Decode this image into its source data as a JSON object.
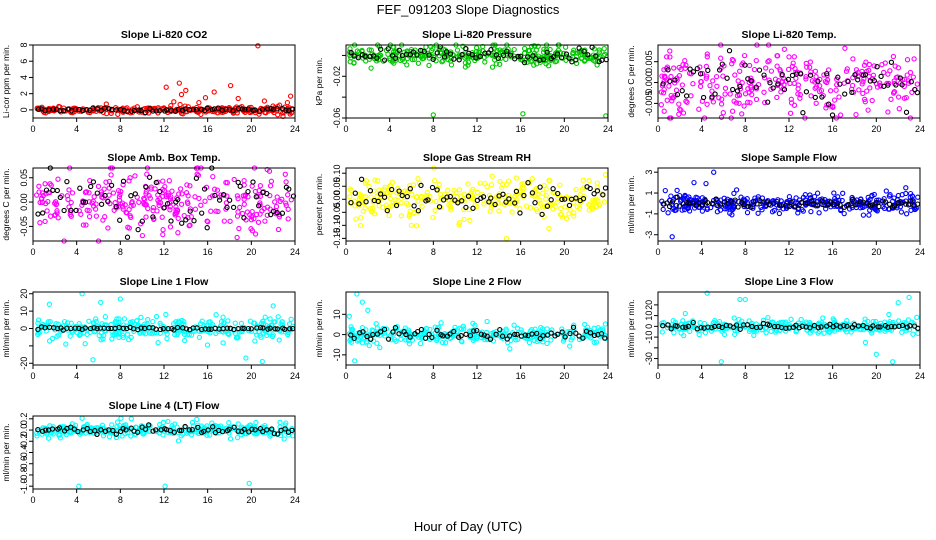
{
  "figure": {
    "title": "FEF_091203  Slope Diagnostics",
    "xlabel": "Hour of Day (UTC)"
  },
  "chart_data": [
    {
      "type": "scatter",
      "title": "Slope Li-820 CO2",
      "ylabel": "Li-cor ppm per min.",
      "xlabel": "",
      "xlim": [
        0,
        24
      ],
      "ylim": [
        -1,
        8
      ],
      "yticks": [
        0,
        2,
        4,
        6,
        8
      ],
      "xticks": [
        0,
        4,
        8,
        12,
        16,
        20,
        24
      ],
      "color": "#ff0000",
      "main": {
        "mean": 0,
        "sd": 0.22,
        "n": 260
      },
      "secondary": {
        "mean": 0,
        "sd": 0.12,
        "n": 70
      },
      "outliers": [
        [
          12.2,
          2.8
        ],
        [
          12.9,
          1.0
        ],
        [
          13.4,
          3.3
        ],
        [
          13.6,
          1.9
        ],
        [
          14.0,
          2.4
        ],
        [
          15.2,
          0.9
        ],
        [
          15.8,
          1.5
        ],
        [
          16.6,
          2.2
        ],
        [
          18.1,
          3.0
        ],
        [
          18.8,
          1.4
        ],
        [
          20.6,
          7.9
        ],
        [
          21.2,
          1.1
        ],
        [
          23.3,
          0.9
        ],
        [
          23.6,
          1.7
        ],
        [
          22.9,
          -0.8
        ]
      ]
    },
    {
      "type": "scatter",
      "title": "Slope Li-820 Pressure",
      "ylabel": "kPa per min.",
      "xlabel": "",
      "xlim": [
        0,
        24
      ],
      "ylim": [
        -0.06,
        0.01
      ],
      "yticks": [
        -0.06,
        -0.04,
        -0.02,
        0.0
      ],
      "ytick_labels": [
        "-0.06",
        "",
        "-0.02",
        ""
      ],
      "xticks": [
        0,
        4,
        8,
        12,
        16,
        20,
        24
      ],
      "color": "#00c800",
      "main": {
        "mean": 0,
        "sd": 0.005,
        "n": 300
      },
      "secondary": {
        "mean": 0,
        "sd": 0.003,
        "n": 70
      },
      "outliers": [
        [
          8.0,
          -0.057
        ],
        [
          16.2,
          -0.056
        ],
        [
          23.8,
          -0.058
        ],
        [
          17.3,
          0.009
        ]
      ]
    },
    {
      "type": "scatter",
      "title": "Slope Li-820 Temp.",
      "ylabel": "degrees C per min.",
      "xlabel": "",
      "xlim": [
        0,
        24
      ],
      "ylim": [
        -0.0085,
        0.009
      ],
      "yticks": [
        -0.005,
        0.0,
        0.005
      ],
      "ytick_labels": [
        "-0.005",
        "0.000",
        "0.005"
      ],
      "xticks": [
        0,
        4,
        8,
        12,
        16,
        20,
        24
      ],
      "color": "#ff00ff",
      "main": {
        "mean": 0,
        "sd": 0.004,
        "n": 300
      },
      "secondary": {
        "mean": 0,
        "sd": 0.003,
        "n": 70
      },
      "outliers": []
    },
    {
      "type": "scatter",
      "title": "Slope Amb. Box Temp.",
      "ylabel": "degrees C per min.",
      "xlabel": "",
      "xlim": [
        0,
        24
      ],
      "ylim": [
        -0.08,
        0.07
      ],
      "yticks": [
        -0.05,
        0.0,
        0.05
      ],
      "ytick_labels": [
        "-0.05",
        "0.00",
        "0.05"
      ],
      "xticks": [
        0,
        4,
        8,
        12,
        16,
        20,
        24
      ],
      "color": "#ff00ff",
      "main": {
        "mean": 0,
        "sd": 0.03,
        "n": 300
      },
      "secondary": {
        "mean": 0,
        "sd": 0.025,
        "n": 70
      },
      "outliers": []
    },
    {
      "type": "scatter",
      "title": "Slope Gas Stream RH",
      "ylabel": "percent per min.",
      "xlabel": "",
      "xlim": [
        0,
        24
      ],
      "ylim": [
        -0.16,
        0.12
      ],
      "yticks": [
        -0.15,
        -0.1,
        -0.05,
        0.0,
        0.05,
        0.1
      ],
      "ytick_labels": [
        "-0.15",
        "-0.10",
        "-0.05",
        "0.00",
        "0.05",
        "0.10"
      ],
      "xticks": [
        0,
        4,
        8,
        12,
        16,
        20,
        24
      ],
      "color": "#ffff00",
      "main": {
        "mean": 0,
        "sd": 0.04,
        "n": 300
      },
      "secondary": {
        "mean": 0,
        "sd": 0.03,
        "n": 70
      },
      "outliers": [
        [
          14.7,
          -0.15
        ]
      ]
    },
    {
      "type": "scatter",
      "title": "Slope Sample Flow",
      "ylabel": "ml/min per min.",
      "xlabel": "",
      "xlim": [
        0,
        24
      ],
      "ylim": [
        -3.6,
        3.4
      ],
      "yticks": [
        -3,
        -1,
        1,
        3
      ],
      "xticks": [
        0,
        4,
        8,
        12,
        16,
        20,
        24
      ],
      "color": "#0000ff",
      "main": {
        "mean": 0,
        "sd": 0.45,
        "n": 320
      },
      "secondary": {
        "mean": 0,
        "sd": 0.2,
        "n": 80
      },
      "outliers": [
        [
          3.3,
          2.0
        ],
        [
          4.4,
          1.9
        ],
        [
          5.1,
          3.0
        ],
        [
          1.3,
          -3.2
        ],
        [
          7.2,
          1.3
        ],
        [
          22.7,
          1.5
        ]
      ]
    },
    {
      "type": "scatter",
      "title": "Slope Line 1 Flow",
      "ylabel": "ml/min per min.",
      "xlabel": "",
      "xlim": [
        0,
        24
      ],
      "ylim": [
        -21,
        21
      ],
      "yticks": [
        -20,
        -10,
        0,
        10,
        20
      ],
      "ytick_labels": [
        "-20",
        "",
        "0",
        "10",
        "20"
      ],
      "xticks": [
        0,
        4,
        8,
        12,
        16,
        20,
        24
      ],
      "color": "#00ffff",
      "main": {
        "mean": 0,
        "sd": 3.0,
        "n": 300
      },
      "secondary": {
        "mean": 0,
        "sd": 0.4,
        "n": 70
      },
      "outliers": [
        [
          4.5,
          20
        ],
        [
          1.5,
          14
        ],
        [
          5.5,
          -18
        ],
        [
          6.2,
          15
        ],
        [
          8.0,
          17
        ],
        [
          19.5,
          -17
        ],
        [
          21.0,
          -19
        ],
        [
          22.0,
          13
        ],
        [
          3.0,
          -9
        ]
      ]
    },
    {
      "type": "scatter",
      "title": "Slope Line 2 Flow",
      "ylabel": "ml/min per min.",
      "xlabel": "",
      "xlim": [
        0,
        24
      ],
      "ylim": [
        -15,
        21
      ],
      "yticks": [
        -10,
        0,
        10
      ],
      "xticks": [
        0,
        4,
        8,
        12,
        16,
        20,
        24
      ],
      "color": "#00ffff",
      "main": {
        "mean": 0,
        "sd": 2.2,
        "n": 300
      },
      "secondary": {
        "mean": 0,
        "sd": 1.2,
        "n": 70
      },
      "outliers": [
        [
          1.0,
          20
        ],
        [
          1.5,
          16
        ],
        [
          0.8,
          -13
        ],
        [
          2.0,
          12
        ],
        [
          0.3,
          9
        ],
        [
          15.0,
          -7
        ]
      ]
    },
    {
      "type": "scatter",
      "title": "Slope Line 3 Flow",
      "ylabel": "ml/min per min.",
      "xlabel": "",
      "xlim": [
        0,
        24
      ],
      "ylim": [
        -36,
        32
      ],
      "yticks": [
        -30,
        -20,
        -10,
        0,
        10,
        20
      ],
      "ytick_labels": [
        "-30",
        "",
        "-10",
        "0",
        "10",
        "20"
      ],
      "xticks": [
        0,
        4,
        8,
        12,
        16,
        20,
        24
      ],
      "color": "#00ffff",
      "main": {
        "mean": 0,
        "sd": 3.5,
        "n": 300
      },
      "secondary": {
        "mean": 0,
        "sd": 1.2,
        "n": 70
      },
      "outliers": [
        [
          4.5,
          31
        ],
        [
          7.5,
          25
        ],
        [
          8.0,
          25
        ],
        [
          5.8,
          -33
        ],
        [
          20.0,
          -26
        ],
        [
          21.5,
          -33
        ],
        [
          22.0,
          22
        ],
        [
          23.0,
          27
        ],
        [
          19.0,
          -15
        ],
        [
          2.5,
          12
        ]
      ]
    },
    {
      "type": "scatter",
      "title": "Slope Line 4 (LT) Flow",
      "ylabel": "ml/min per min.",
      "xlabel": "",
      "xlim": [
        0,
        24
      ],
      "ylim": [
        -1.05,
        0.25
      ],
      "yticks": [
        -1.0,
        -0.8,
        -0.6,
        -0.4,
        -0.2,
        0.0,
        0.2
      ],
      "ytick_labels": [
        "-1.0",
        "-0.8",
        "-0.6",
        "-0.4",
        "-0.2",
        "0.0",
        "0.2"
      ],
      "xticks": [
        0,
        4,
        8,
        12,
        16,
        20,
        24
      ],
      "color": "#00ffff",
      "main": {
        "mean": 0,
        "sd": 0.06,
        "n": 300
      },
      "secondary": {
        "mean": 0,
        "sd": 0.03,
        "n": 70
      },
      "outliers": [
        [
          4.2,
          -1.0
        ],
        [
          12.1,
          -1.0
        ],
        [
          19.8,
          -0.95
        ],
        [
          4.5,
          0.21
        ],
        [
          9.0,
          0.2
        ],
        [
          15.0,
          0.19
        ],
        [
          2.5,
          -0.14
        ]
      ]
    }
  ]
}
